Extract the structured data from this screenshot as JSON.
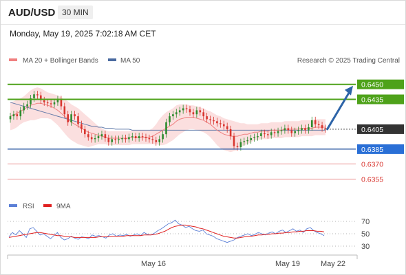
{
  "header": {
    "symbol": "AUD/USD",
    "timeframe": "30 MIN",
    "datetime": "Monday, May 19, 2025 7:02:18 AM CET"
  },
  "legend": {
    "ma20_label": "MA 20 + Bollinger Bands",
    "ma50_label": "MA 50",
    "credit": "Research © 2025 Trading Central",
    "rsi_label": "RSI",
    "rsi_ma_label": "9MA"
  },
  "colors": {
    "bull": "#2e8b2e",
    "bear": "#d8352f",
    "ma20": "#f08080",
    "ma50": "#4a6aa0",
    "band_fill": "#f9d4d4",
    "resistance": "#4ea21a",
    "support": "#1f4e9c",
    "support_minor": "#e06060",
    "rsi": "#5b7fd6",
    "rsi_ma": "#e02020",
    "arrow": "#2d64a8",
    "price_tag": "#333333"
  },
  "chart_data": [
    {
      "type": "candlestick",
      "title": "AUD/USD 30 MIN",
      "x_tick_labels": [
        "May 16",
        "May 19",
        "May 22"
      ],
      "ylim": [
        0.6338,
        0.6465
      ],
      "current_price": 0.6405,
      "levels": [
        {
          "label": "0.6450",
          "value": 0.645,
          "kind": "resistance"
        },
        {
          "label": "0.6435",
          "value": 0.6435,
          "kind": "resistance"
        },
        {
          "label": "0.6405",
          "value": 0.6405,
          "kind": "current"
        },
        {
          "label": "0.6385",
          "value": 0.6385,
          "kind": "support"
        },
        {
          "label": "0.6370",
          "value": 0.637,
          "kind": "support-minor"
        },
        {
          "label": "0.6355",
          "value": 0.6355,
          "kind": "support-minor"
        }
      ],
      "projection": {
        "from": 0.6405,
        "to": 0.645
      },
      "closes": [
        0.6418,
        0.642,
        0.6418,
        0.6424,
        0.6428,
        0.643,
        0.6436,
        0.644,
        0.6439,
        0.6434,
        0.6432,
        0.6431,
        0.643,
        0.6432,
        0.6435,
        0.6428,
        0.642,
        0.6412,
        0.642,
        0.6418,
        0.641,
        0.6405,
        0.64,
        0.6397,
        0.6395,
        0.6396,
        0.6398,
        0.64,
        0.6396,
        0.6392,
        0.6395,
        0.6394,
        0.6395,
        0.6396,
        0.6395,
        0.6397,
        0.6398,
        0.6396,
        0.6398,
        0.6397,
        0.6396,
        0.6395,
        0.6394,
        0.6392,
        0.6395,
        0.64,
        0.6412,
        0.6418,
        0.642,
        0.6422,
        0.6424,
        0.6426,
        0.6425,
        0.6422,
        0.642,
        0.6424,
        0.6422,
        0.6418,
        0.6415,
        0.6414,
        0.6413,
        0.6411,
        0.641,
        0.6408,
        0.6405,
        0.6398,
        0.6388,
        0.6387,
        0.6392,
        0.6393,
        0.6394,
        0.6396,
        0.6397,
        0.6398,
        0.6401,
        0.64,
        0.6399,
        0.6402,
        0.6401,
        0.6403,
        0.6404,
        0.6406,
        0.6404,
        0.6401,
        0.6403,
        0.6404,
        0.6406,
        0.6404,
        0.6407,
        0.6414,
        0.641,
        0.6409,
        0.6406,
        0.6405
      ],
      "ma20": [
        0.6418,
        0.6419,
        0.6421,
        0.6423,
        0.6425,
        0.6427,
        0.6429,
        0.643,
        0.6431,
        0.6431,
        0.643,
        0.6429,
        0.6428,
        0.6426,
        0.6424,
        0.6421,
        0.6418,
        0.6415,
        0.6412,
        0.641,
        0.6408,
        0.6406,
        0.6404,
        0.6402,
        0.6401,
        0.64,
        0.6399,
        0.6398,
        0.6397,
        0.6396,
        0.6396,
        0.6396,
        0.6396,
        0.6396,
        0.6396,
        0.6396,
        0.6397,
        0.6397,
        0.6397,
        0.6397,
        0.6397,
        0.6397,
        0.6398,
        0.64,
        0.6402,
        0.6404,
        0.6406,
        0.6408,
        0.641,
        0.6413,
        0.6415,
        0.6416,
        0.6417,
        0.6417,
        0.6417,
        0.6416,
        0.6415,
        0.6414,
        0.6412,
        0.641,
        0.6407,
        0.6404,
        0.6402,
        0.64,
        0.6399,
        0.6398,
        0.6398,
        0.6398,
        0.6399,
        0.64,
        0.64,
        0.6401,
        0.6402,
        0.6402,
        0.6403,
        0.6403,
        0.6403,
        0.6404,
        0.6404,
        0.6404,
        0.6404,
        0.6405,
        0.6405,
        0.6405,
        0.6405,
        0.6405,
        0.6406,
        0.6406,
        0.6406,
        0.6406,
        0.6407,
        0.6407,
        0.6407,
        0.6407
      ],
      "ma50": [
        0.6432,
        0.6431,
        0.643,
        0.6429,
        0.6428,
        0.6427,
        0.6426,
        0.6425,
        0.6424,
        0.6423,
        0.6422,
        0.6421,
        0.642,
        0.6419,
        0.6418,
        0.6417,
        0.6416,
        0.6415,
        0.6414,
        0.6413,
        0.6412,
        0.6411,
        0.641,
        0.6409,
        0.6408,
        0.6408,
        0.6407,
        0.6407,
        0.6406,
        0.6406,
        0.6406,
        0.6405,
        0.6405,
        0.6405,
        0.6405,
        0.6405,
        0.6404,
        0.6404,
        0.6404,
        0.6404,
        0.6404,
        0.6404,
        0.6404,
        0.6404,
        0.6404,
        0.6404,
        0.6404,
        0.6404,
        0.6404,
        0.6404,
        0.6404,
        0.6404,
        0.6404,
        0.6404,
        0.6404,
        0.6404,
        0.6404,
        0.6404,
        0.6404,
        0.6404,
        0.6404,
        0.6404,
        0.6404,
        0.6404,
        0.6404,
        0.6404,
        0.6404,
        0.6404,
        0.6404,
        0.6404,
        0.6404,
        0.6404,
        0.6404,
        0.6404,
        0.6404,
        0.6404,
        0.6404,
        0.6404,
        0.6404,
        0.6404,
        0.6404,
        0.6404,
        0.6404,
        0.6404,
        0.6404,
        0.6404,
        0.6404,
        0.6404,
        0.6404,
        0.6404,
        0.6404,
        0.6404,
        0.6404,
        0.6404
      ],
      "band_halfwidth": [
        0.0014,
        0.0014,
        0.0014,
        0.0013,
        0.0013,
        0.0014,
        0.0015,
        0.0016,
        0.0016,
        0.0015,
        0.0014,
        0.0013,
        0.0013,
        0.0014,
        0.0015,
        0.0016,
        0.0017,
        0.0018,
        0.0018,
        0.0018,
        0.0018,
        0.0017,
        0.0016,
        0.0015,
        0.0013,
        0.0011,
        0.0009,
        0.0008,
        0.0007,
        0.0007,
        0.0007,
        0.0007,
        0.0007,
        0.0007,
        0.0007,
        0.0007,
        0.0007,
        0.0007,
        0.0007,
        0.0007,
        0.0007,
        0.0007,
        0.0008,
        0.001,
        0.0013,
        0.0015,
        0.0016,
        0.0016,
        0.0016,
        0.0016,
        0.0015,
        0.0014,
        0.0013,
        0.0012,
        0.0012,
        0.0012,
        0.0012,
        0.0012,
        0.0012,
        0.0013,
        0.0014,
        0.0015,
        0.0016,
        0.0016,
        0.0016,
        0.0016,
        0.0015,
        0.0014,
        0.0012,
        0.0011,
        0.001,
        0.0009,
        0.0008,
        0.0008,
        0.0008,
        0.0008,
        0.0008,
        0.0008,
        0.0008,
        0.0008,
        0.0008,
        0.0008,
        0.0008,
        0.0008,
        0.0008,
        0.0008,
        0.0008,
        0.0008,
        0.0008,
        0.0008,
        0.0008,
        0.0008,
        0.0008,
        0.0008
      ]
    },
    {
      "type": "line",
      "title": "RSI",
      "y_tick_labels": [
        "70",
        "50",
        "30"
      ],
      "ylim": [
        20,
        80
      ],
      "series": [
        {
          "name": "RSI",
          "values": [
            45,
            52,
            48,
            55,
            50,
            44,
            58,
            60,
            54,
            48,
            50,
            46,
            42,
            47,
            52,
            44,
            40,
            42,
            46,
            43,
            41,
            45,
            44,
            42,
            48,
            46,
            47,
            45,
            43,
            48,
            50,
            46,
            48,
            47,
            49,
            46,
            48,
            50,
            47,
            52,
            49,
            48,
            51,
            55,
            58,
            62,
            66,
            68,
            72,
            66,
            64,
            60,
            62,
            58,
            55,
            54,
            56,
            50,
            48,
            46,
            42,
            40,
            38,
            36,
            38,
            40,
            44,
            46,
            48,
            50,
            47,
            49,
            52,
            50,
            48,
            51,
            53,
            50,
            54,
            56,
            52,
            55,
            58,
            54,
            56,
            52,
            58,
            60,
            55,
            52,
            50,
            47
          ]
        },
        {
          "name": "9MA",
          "values": [
            44,
            45,
            46,
            47,
            48,
            49,
            50,
            51,
            52,
            52,
            51,
            50,
            49,
            48,
            47,
            47,
            46,
            45,
            45,
            44,
            44,
            44,
            44,
            44,
            44,
            44,
            45,
            45,
            45,
            45,
            46,
            46,
            46,
            46,
            47,
            47,
            47,
            47,
            47,
            48,
            48,
            48,
            49,
            50,
            52,
            54,
            57,
            60,
            62,
            63,
            64,
            64,
            63,
            62,
            61,
            59,
            58,
            56,
            54,
            52,
            50,
            48,
            46,
            45,
            44,
            43,
            43,
            44,
            45,
            46,
            46,
            47,
            48,
            48,
            49,
            49,
            50,
            50,
            51,
            51,
            52,
            52,
            53,
            53,
            54,
            54,
            55,
            55,
            55,
            54,
            54,
            53
          ]
        }
      ]
    }
  ]
}
